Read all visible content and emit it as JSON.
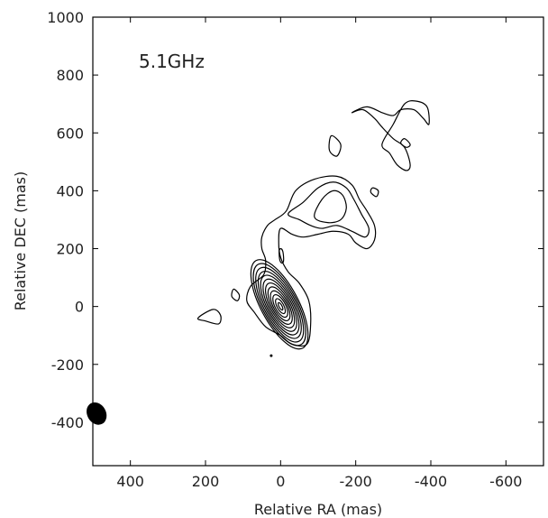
{
  "chart_data": {
    "type": "contour",
    "annotation": "5.1GHz",
    "xlabel": "Relative RA (mas)",
    "ylabel": "Relative DEC (mas)",
    "xlim": [
      500,
      -700
    ],
    "ylim": [
      -550,
      1000
    ],
    "x_reversed": true,
    "xticks": [
      400,
      200,
      0,
      -200,
      -400,
      -600
    ],
    "xtick_labels": [
      "400",
      "200",
      "0",
      "-200",
      "-400",
      "-600"
    ],
    "yticks": [
      1000,
      800,
      600,
      400,
      200,
      0,
      -200,
      -400
    ],
    "ytick_labels": [
      "1000",
      "800",
      "600",
      "400",
      "200",
      "0",
      "-200",
      "-400"
    ],
    "grid": false,
    "core": {
      "ra": 0,
      "dec": 0
    },
    "core_contours": [
      {
        "level": 1,
        "rx": 50,
        "ry": 132
      },
      {
        "level": 2,
        "rx": 46,
        "ry": 121
      },
      {
        "level": 3,
        "rx": 42,
        "ry": 110
      },
      {
        "level": 4,
        "rx": 38,
        "ry": 99
      },
      {
        "level": 5,
        "rx": 34,
        "ry": 88
      },
      {
        "level": 6,
        "rx": 30,
        "ry": 77
      },
      {
        "level": 7,
        "rx": 26,
        "ry": 66
      },
      {
        "level": 8,
        "rx": 22,
        "ry": 55
      },
      {
        "level": 9,
        "rx": 18,
        "ry": 44
      },
      {
        "level": 10,
        "rx": 14,
        "ry": 33
      },
      {
        "level": 11,
        "rx": 9,
        "ry": 22
      },
      {
        "level": 12,
        "rx": 4,
        "ry": 11
      }
    ],
    "jet_contours": [
      {
        "name": "outer-jet",
        "points": [
          [
            70,
            -20
          ],
          [
            90,
            20
          ],
          [
            80,
            70
          ],
          [
            45,
            110
          ],
          [
            40,
            160
          ],
          [
            50,
            200
          ],
          [
            50,
            240
          ],
          [
            35,
            280
          ],
          [
            15,
            300
          ],
          [
            -15,
            330
          ],
          [
            -40,
            400
          ],
          [
            -90,
            440
          ],
          [
            -150,
            450
          ],
          [
            -190,
            420
          ],
          [
            -210,
            370
          ],
          [
            -230,
            330
          ],
          [
            -250,
            280
          ],
          [
            -250,
            230
          ],
          [
            -230,
            200
          ],
          [
            -200,
            220
          ],
          [
            -180,
            250
          ],
          [
            -140,
            260
          ],
          [
            -100,
            250
          ],
          [
            -60,
            240
          ],
          [
            -30,
            250
          ],
          [
            0,
            270
          ],
          [
            5,
            220
          ],
          [
            0,
            170
          ],
          [
            -20,
            120
          ],
          [
            -50,
            80
          ],
          [
            -75,
            20
          ],
          [
            -80,
            -60
          ],
          [
            -70,
            -130
          ],
          [
            -30,
            -130
          ],
          [
            0,
            -100
          ],
          [
            40,
            -70
          ]
        ]
      },
      {
        "name": "inner-jet-1",
        "points": [
          [
            -20,
            320
          ],
          [
            -60,
            360
          ],
          [
            -100,
            410
          ],
          [
            -140,
            430
          ],
          [
            -175,
            410
          ],
          [
            -195,
            370
          ],
          [
            -215,
            320
          ],
          [
            -235,
            270
          ],
          [
            -225,
            240
          ],
          [
            -190,
            260
          ],
          [
            -150,
            280
          ],
          [
            -110,
            270
          ],
          [
            -80,
            280
          ],
          [
            -50,
            300
          ]
        ]
      },
      {
        "name": "inner-jet-2",
        "points": [
          [
            -90,
            310
          ],
          [
            -110,
            370
          ],
          [
            -140,
            400
          ],
          [
            -165,
            385
          ],
          [
            -175,
            340
          ],
          [
            -160,
            300
          ],
          [
            -125,
            290
          ]
        ]
      },
      {
        "name": "knot-near-core",
        "points": [
          [
            2,
            160
          ],
          [
            4,
            190
          ],
          [
            0,
            200
          ],
          [
            -6,
            190
          ],
          [
            -8,
            160
          ],
          [
            -4,
            150
          ]
        ]
      },
      {
        "name": "outer-plume",
        "points": [
          [
            -190,
            670
          ],
          [
            -220,
            680
          ],
          [
            -250,
            650
          ],
          [
            -270,
            620
          ],
          [
            -300,
            580
          ],
          [
            -330,
            550
          ],
          [
            -345,
            490
          ],
          [
            -335,
            470
          ],
          [
            -310,
            490
          ],
          [
            -290,
            530
          ],
          [
            -270,
            560
          ],
          [
            -300,
            630
          ],
          [
            -330,
            700
          ],
          [
            -360,
            710
          ],
          [
            -390,
            690
          ],
          [
            -395,
            630
          ],
          [
            -380,
            650
          ],
          [
            -355,
            680
          ],
          [
            -320,
            680
          ],
          [
            -300,
            660
          ],
          [
            -270,
            670
          ],
          [
            -230,
            690
          ]
        ]
      },
      {
        "name": "plume-blob",
        "points": [
          [
            -330,
            580
          ],
          [
            -345,
            560
          ],
          [
            -335,
            550
          ],
          [
            -320,
            565
          ]
        ]
      },
      {
        "name": "left-blob-1",
        "points": [
          [
            -135,
            590
          ],
          [
            -160,
            560
          ],
          [
            -150,
            520
          ],
          [
            -130,
            540
          ]
        ]
      },
      {
        "name": "left-blob-2",
        "points": [
          [
            -245,
            410
          ],
          [
            -260,
            400
          ],
          [
            -255,
            380
          ],
          [
            -240,
            395
          ]
        ]
      },
      {
        "name": "left-blob-3",
        "points": [
          [
            125,
            60
          ],
          [
            110,
            40
          ],
          [
            115,
            20
          ],
          [
            130,
            35
          ]
        ]
      },
      {
        "name": "left-blob-4",
        "points": [
          [
            220,
            -40
          ],
          [
            180,
            -10
          ],
          [
            160,
            -30
          ],
          [
            165,
            -60
          ],
          [
            200,
            -50
          ]
        ]
      }
    ],
    "beam": {
      "ra": 490,
      "dec": -370,
      "semi_major": 60,
      "semi_minor": 25,
      "pa_deg": 30,
      "fill": "#000000"
    },
    "extra_points": [
      {
        "ra": 25,
        "dec": -170
      }
    ]
  }
}
